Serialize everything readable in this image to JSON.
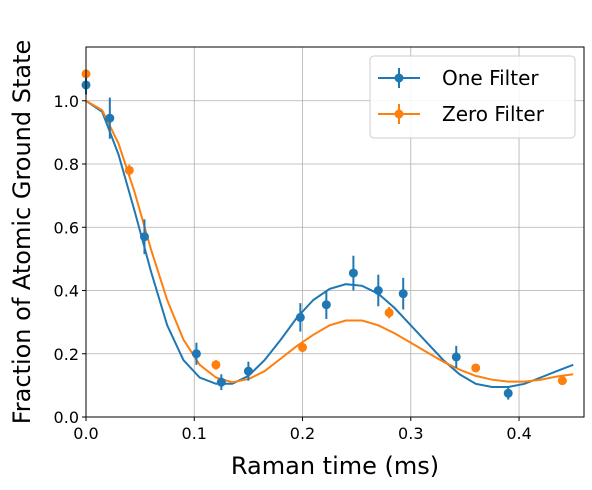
{
  "chart_data": {
    "type": "scatter",
    "xlabel": "Raman time (ms)",
    "ylabel": "Fraction of Atomic Ground State",
    "xlim": [
      0.0,
      0.46
    ],
    "ylim": [
      0.0,
      1.17
    ],
    "xticks": [
      0.0,
      0.1,
      0.2,
      0.3,
      0.4
    ],
    "xtick_labels": [
      "0.0",
      "0.1",
      "0.2",
      "0.3",
      "0.4"
    ],
    "yticks": [
      0.0,
      0.2,
      0.4,
      0.6,
      0.8,
      1.0
    ],
    "ytick_labels": [
      "0.0",
      "0.2",
      "0.4",
      "0.6",
      "0.8",
      "1.0"
    ],
    "grid": true,
    "legend_position": "top-right",
    "series": [
      {
        "name": "One Filter",
        "color": "#1f77b4",
        "x": [
          0.0,
          0.022,
          0.054,
          0.102,
          0.125,
          0.15,
          0.198,
          0.222,
          0.247,
          0.27,
          0.293,
          0.342,
          0.39
        ],
        "y": [
          1.05,
          0.945,
          0.57,
          0.2,
          0.11,
          0.145,
          0.315,
          0.355,
          0.455,
          0.4,
          0.39,
          0.19,
          0.075
        ],
        "yerr": [
          0.03,
          0.065,
          0.055,
          0.035,
          0.025,
          0.03,
          0.045,
          0.045,
          0.055,
          0.05,
          0.05,
          0.035,
          0.02
        ],
        "fit_x": [
          0.0,
          0.015,
          0.03,
          0.045,
          0.06,
          0.075,
          0.09,
          0.105,
          0.12,
          0.135,
          0.15,
          0.165,
          0.18,
          0.195,
          0.21,
          0.225,
          0.24,
          0.255,
          0.27,
          0.285,
          0.3,
          0.315,
          0.33,
          0.345,
          0.36,
          0.375,
          0.39,
          0.405,
          0.42,
          0.435,
          0.45
        ],
        "fit_y": [
          1.0,
          0.965,
          0.83,
          0.65,
          0.46,
          0.29,
          0.18,
          0.125,
          0.105,
          0.105,
          0.13,
          0.18,
          0.245,
          0.315,
          0.37,
          0.405,
          0.42,
          0.415,
          0.39,
          0.345,
          0.29,
          0.235,
          0.18,
          0.135,
          0.105,
          0.095,
          0.095,
          0.105,
          0.125,
          0.145,
          0.165
        ]
      },
      {
        "name": "Zero Filter",
        "color": "#ff7f0e",
        "x": [
          0.0,
          0.04,
          0.12,
          0.2,
          0.28,
          0.36,
          0.44
        ],
        "y": [
          1.085,
          0.78,
          0.165,
          0.22,
          0.33,
          0.155,
          0.115
        ],
        "yerr": [
          0.0,
          0.018,
          0.015,
          0.015,
          0.018,
          0.012,
          0.012
        ],
        "fit_x": [
          0.0,
          0.015,
          0.03,
          0.045,
          0.06,
          0.075,
          0.09,
          0.105,
          0.12,
          0.135,
          0.15,
          0.165,
          0.18,
          0.195,
          0.21,
          0.225,
          0.24,
          0.255,
          0.27,
          0.285,
          0.3,
          0.315,
          0.33,
          0.345,
          0.36,
          0.375,
          0.39,
          0.405,
          0.42,
          0.435,
          0.45
        ],
        "fit_y": [
          1.0,
          0.97,
          0.865,
          0.71,
          0.53,
          0.37,
          0.245,
          0.165,
          0.125,
          0.11,
          0.12,
          0.145,
          0.185,
          0.225,
          0.26,
          0.29,
          0.305,
          0.305,
          0.29,
          0.265,
          0.235,
          0.205,
          0.175,
          0.15,
          0.13,
          0.118,
          0.112,
          0.112,
          0.118,
          0.128,
          0.135
        ]
      }
    ]
  }
}
